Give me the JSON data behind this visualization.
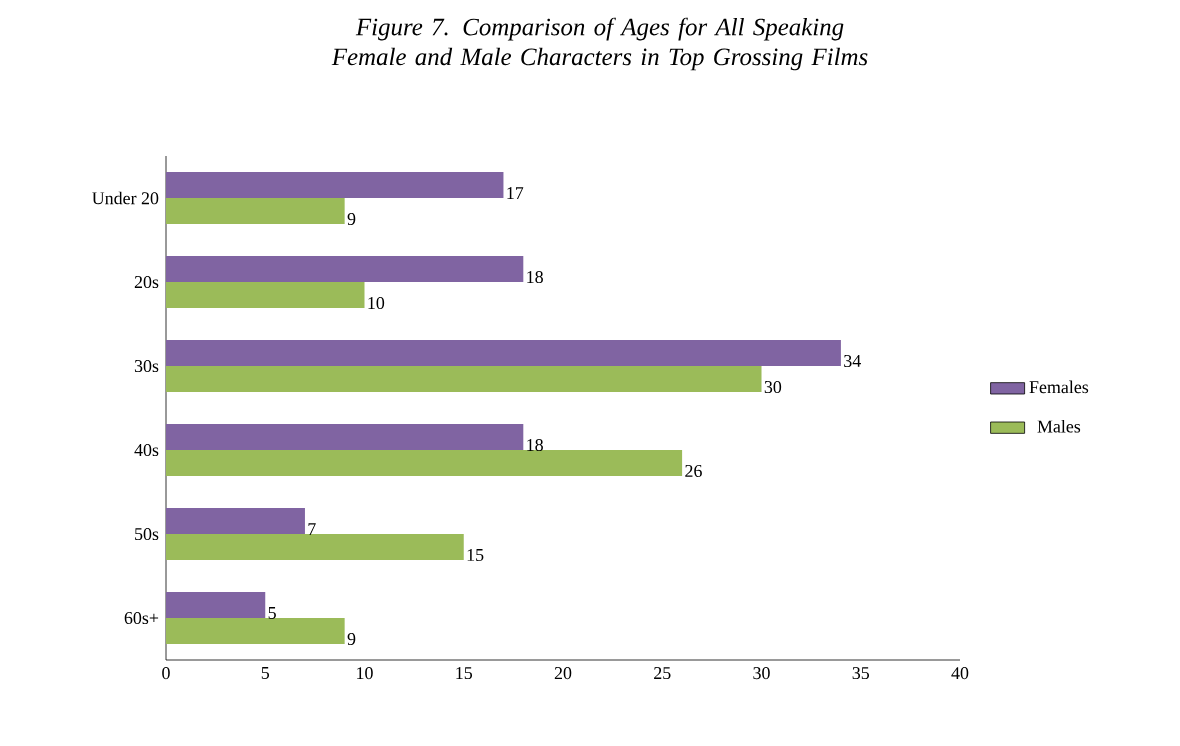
{
  "chart_data": {
    "type": "bar",
    "orientation": "horizontal",
    "title": "Figure 7.  Comparison of Ages for All Speaking Female and Male Characters in Top Grossing Films",
    "categories": [
      "Under 20",
      "20s",
      "30s",
      "40s",
      "50s",
      "60s+"
    ],
    "series": [
      {
        "name": "Females",
        "color": "#8064a2",
        "values": [
          17,
          18,
          34,
          18,
          7,
          5
        ]
      },
      {
        "name": "Males",
        "color": "#9bbb59",
        "values": [
          9,
          10,
          30,
          26,
          15,
          9
        ]
      }
    ],
    "xlim": [
      0,
      40
    ],
    "xticks": [
      0,
      5,
      10,
      15,
      20,
      25,
      30,
      35,
      40
    ],
    "data_labels": true,
    "legend": "right",
    "grid": false
  }
}
